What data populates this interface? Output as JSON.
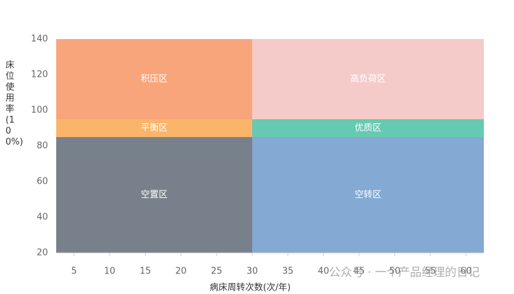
{
  "chart_data": {
    "type": "region",
    "x_label": "病床周转次数(次/年)",
    "y_label": "床位使用率(100%)",
    "xlim": [
      2.5,
      62.5
    ],
    "xticks": [
      5,
      10,
      15,
      20,
      25,
      30,
      35,
      40,
      45,
      50,
      55,
      60
    ],
    "ylim": [
      20,
      140
    ],
    "yticks": [
      20,
      40,
      60,
      80,
      100,
      120,
      140
    ],
    "regions": [
      {
        "name": "积压区",
        "color": "#f9a57c",
        "x": [
          2.5,
          30
        ],
        "y": [
          95,
          140
        ]
      },
      {
        "name": "高负荷区",
        "color": "#f4cbc9",
        "x": [
          30,
          62.5
        ],
        "y": [
          95,
          140
        ]
      },
      {
        "name": "平衡区",
        "color": "#fab56a",
        "x": [
          2.5,
          30
        ],
        "y": [
          85,
          95
        ]
      },
      {
        "name": "优质区",
        "color": "#66c9b2",
        "x": [
          30,
          62.5
        ],
        "y": [
          85,
          95
        ]
      },
      {
        "name": "空置区",
        "color": "#78818b",
        "x": [
          2.5,
          30
        ],
        "y": [
          20,
          85
        ]
      },
      {
        "name": "空转区",
        "color": "#84a9d3",
        "x": [
          30,
          62.5
        ],
        "y": [
          20,
          85
        ]
      }
    ],
    "watermark": "公众号 · 一个产品经理的日记"
  }
}
